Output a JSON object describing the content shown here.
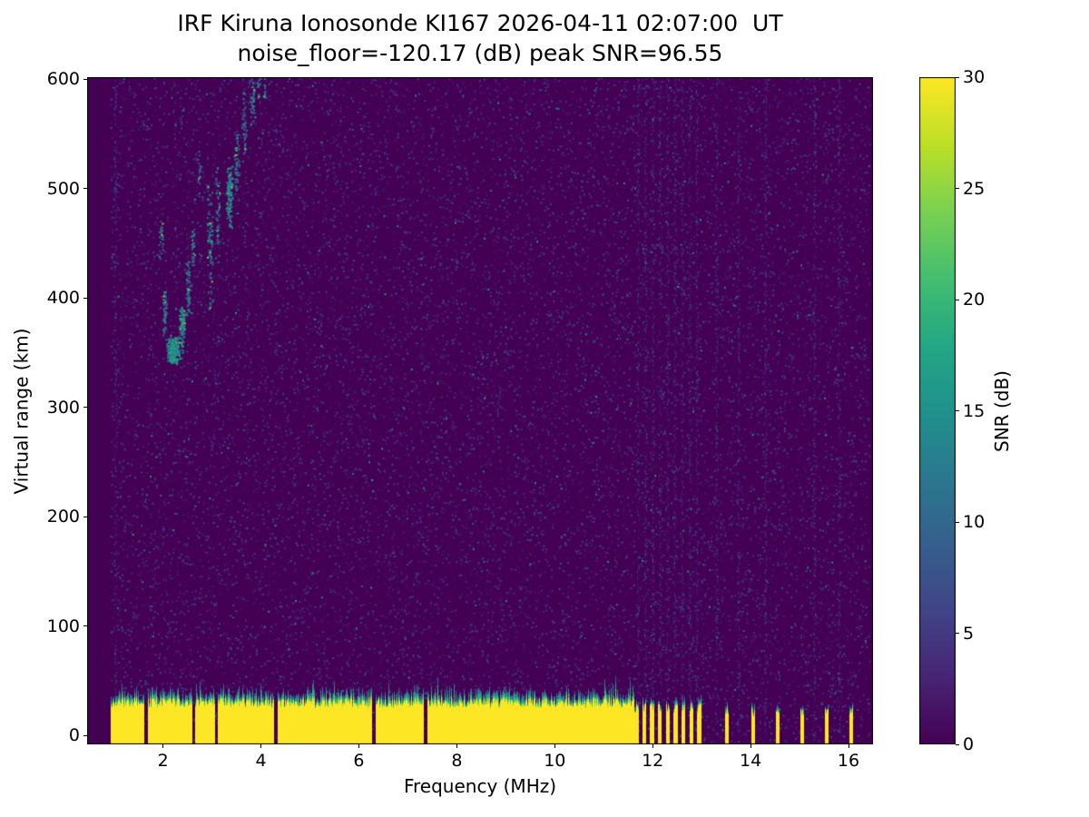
{
  "figure": {
    "title_line1": "IRF Kiruna Ionosonde KI167 2026-04-11 02:07:00  UT",
    "title_line2": "noise_floor=-120.17 (dB) peak SNR=96.55",
    "xlabel": "Frequency (MHz)",
    "ylabel": "Virtual range (km)",
    "colorbar_label": "SNR (dB)"
  },
  "chart_data": {
    "type": "heatmap",
    "title": "IRF Kiruna Ionosonde KI167 2026-04-11 02:07:00  UT",
    "subtitle": "noise_floor=-120.17 (dB) peak SNR=96.55",
    "xlabel": "Frequency (MHz)",
    "ylabel": "Virtual range (km)",
    "colormap": "viridis",
    "x_range_mhz": [
      0.45,
      16.5
    ],
    "y_range_km": [
      -8,
      602
    ],
    "x_ticks": [
      2,
      4,
      6,
      8,
      10,
      12,
      14,
      16
    ],
    "y_ticks": [
      0,
      100,
      200,
      300,
      400,
      500,
      600
    ],
    "colorbar": {
      "label": "SNR (dB)",
      "range_db": [
        0,
        30
      ],
      "ticks": [
        0,
        5,
        10,
        15,
        20,
        25,
        30
      ]
    },
    "noise_floor_db": -120.17,
    "peak_snr_db": 96.55,
    "sweep_extent_mhz": [
      0.92,
      16.42
    ],
    "ground_echo_band": {
      "freq_start_mhz": 0.92,
      "freq_end_mhz": 11.62,
      "top_km_mean": 30,
      "peak_snr_db": 30,
      "notch_freqs_mhz": [
        1.65,
        2.62,
        3.08,
        4.3,
        6.3,
        7.35
      ]
    },
    "striped_band": {
      "freq_start_mhz": 11.62,
      "freq_end_mhz": 13.05,
      "on_width_mhz": 0.08,
      "off_width_mhz": 0.08
    },
    "sparse_tx_columns_mhz": [
      13.5,
      14.05,
      14.55,
      15.05,
      15.55,
      16.05
    ],
    "rfi_noise_columns_mhz": [
      1.02,
      11.7,
      11.85,
      12.0,
      12.15,
      12.3,
      12.45,
      12.6,
      12.75,
      12.9,
      13.3,
      13.75,
      14.3,
      15.3,
      15.8
    ],
    "ionospheric_echo_trace": [
      {
        "f_mhz": 1.95,
        "range_km": 455,
        "spread_mhz": 0.05,
        "spread_km": 22,
        "points": 25,
        "snr_db": 9
      },
      {
        "f_mhz": 2.02,
        "range_km": 385,
        "spread_mhz": 0.05,
        "spread_km": 28,
        "points": 55,
        "snr_db": 11
      },
      {
        "f_mhz": 2.2,
        "range_km": 353,
        "spread_mhz": 0.15,
        "spread_km": 14,
        "points": 240,
        "snr_db": 15
      },
      {
        "f_mhz": 2.38,
        "range_km": 373,
        "spread_mhz": 0.07,
        "spread_km": 24,
        "points": 110,
        "snr_db": 13
      },
      {
        "f_mhz": 2.5,
        "range_km": 408,
        "spread_mhz": 0.05,
        "spread_km": 28,
        "points": 65,
        "snr_db": 11
      },
      {
        "f_mhz": 2.6,
        "range_km": 448,
        "spread_mhz": 0.04,
        "spread_km": 24,
        "points": 38,
        "snr_db": 10
      },
      {
        "f_mhz": 2.73,
        "range_km": 515,
        "spread_mhz": 0.04,
        "spread_km": 26,
        "points": 22,
        "snr_db": 9
      },
      {
        "f_mhz": 2.95,
        "range_km": 445,
        "spread_mhz": 0.07,
        "spread_km": 68,
        "points": 85,
        "snr_db": 11
      },
      {
        "f_mhz": 3.1,
        "range_km": 478,
        "spread_mhz": 0.05,
        "spread_km": 48,
        "points": 50,
        "snr_db": 10
      },
      {
        "f_mhz": 3.35,
        "range_km": 497,
        "spread_mhz": 0.08,
        "spread_km": 34,
        "points": 120,
        "snr_db": 14
      },
      {
        "f_mhz": 3.5,
        "range_km": 525,
        "spread_mhz": 0.05,
        "spread_km": 36,
        "points": 50,
        "snr_db": 11
      },
      {
        "f_mhz": 3.65,
        "range_km": 557,
        "spread_mhz": 0.05,
        "spread_km": 42,
        "points": 45,
        "snr_db": 10
      },
      {
        "f_mhz": 3.82,
        "range_km": 585,
        "spread_mhz": 0.06,
        "spread_km": 36,
        "points": 50,
        "snr_db": 11
      },
      {
        "f_mhz": 3.95,
        "range_km": 604,
        "spread_mhz": 0.05,
        "spread_km": 26,
        "points": 32,
        "snr_db": 10
      },
      {
        "f_mhz": 4.06,
        "range_km": 592,
        "spread_mhz": 0.03,
        "spread_km": 20,
        "points": 15,
        "snr_db": 9
      }
    ]
  }
}
